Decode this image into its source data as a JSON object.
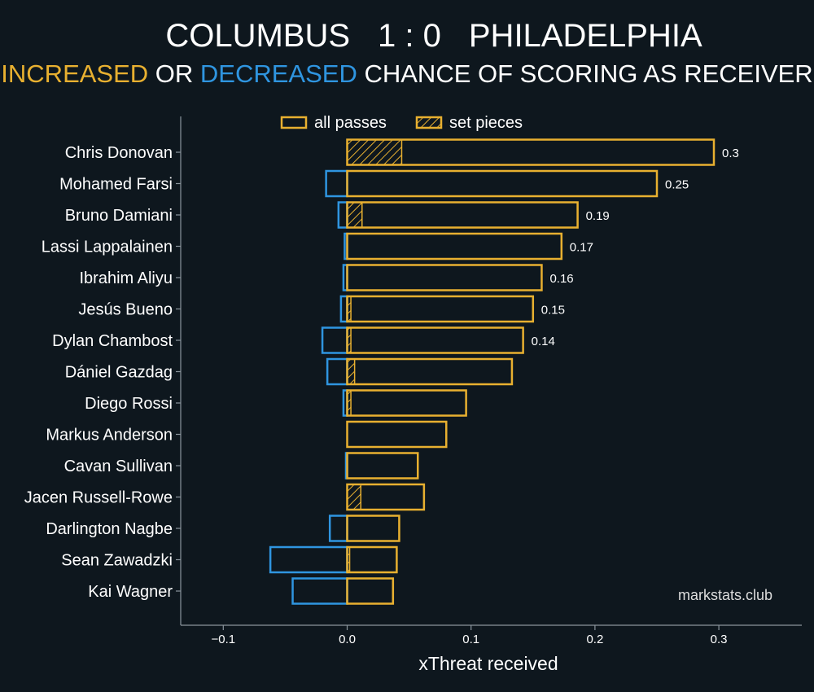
{
  "header": {
    "home_team": "COLUMBUS",
    "score": "1 : 0",
    "away_team": "PHILADELPHIA",
    "subtitle_increased": "INCREASED",
    "subtitle_or": "OR",
    "subtitle_decreased": "DECREASED",
    "subtitle_rest": "CHANCE OF SCORING AS RECEIVER"
  },
  "legend": {
    "all_passes": "all passes",
    "set_pieces": "set pieces"
  },
  "watermark": "markstats.club",
  "colors": {
    "background": "#0e171e",
    "increased": "#e8b030",
    "decreased": "#2f95e0",
    "axis": "#8a949c"
  },
  "chart_data": {
    "type": "bar",
    "orientation": "horizontal",
    "xlabel": "xThreat received",
    "xlim": [
      -0.135,
      0.37
    ],
    "xticks": [
      -0.1,
      0.0,
      0.1,
      0.2,
      0.3
    ],
    "xtick_labels": [
      "−0.1",
      "0.0",
      "0.1",
      "0.2",
      "0.3"
    ],
    "categories": [
      "Chris Donovan",
      "Mohamed Farsi",
      "Bruno Damiani",
      "Lassi Lappalainen",
      "Ibrahim Aliyu",
      "Jesús Bueno",
      "Dylan Chambost",
      "Dániel Gazdag",
      "Diego Rossi",
      "Markus Anderson",
      "Cavan Sullivan",
      "Jacen Russell-Rowe",
      "Darlington Nagbe",
      "Sean Zawadzki",
      "Kai Wagner"
    ],
    "series": [
      {
        "name": "all passes",
        "values": [
          0.296,
          0.25,
          0.186,
          0.173,
          0.157,
          0.15,
          0.142,
          0.133,
          0.096,
          0.08,
          0.057,
          0.062,
          0.042,
          0.04,
          0.037
        ]
      },
      {
        "name": "set pieces",
        "values": [
          0.044,
          0.0,
          0.012,
          0.0,
          0.0,
          0.003,
          0.003,
          0.006,
          0.003,
          0.0,
          0.0,
          0.011,
          0.0,
          0.002,
          0.0
        ]
      }
    ],
    "decreased": [
      0.0,
      -0.017,
      -0.007,
      -0.002,
      -0.003,
      -0.005,
      -0.02,
      -0.016,
      -0.003,
      0.0,
      -0.001,
      0.0,
      -0.014,
      -0.062,
      -0.044
    ],
    "value_labels": [
      "0.3",
      "0.25",
      "0.19",
      "0.17",
      "0.16",
      "0.15",
      "0.14",
      "",
      "",
      "",
      "",
      "",
      "",
      "",
      ""
    ]
  }
}
